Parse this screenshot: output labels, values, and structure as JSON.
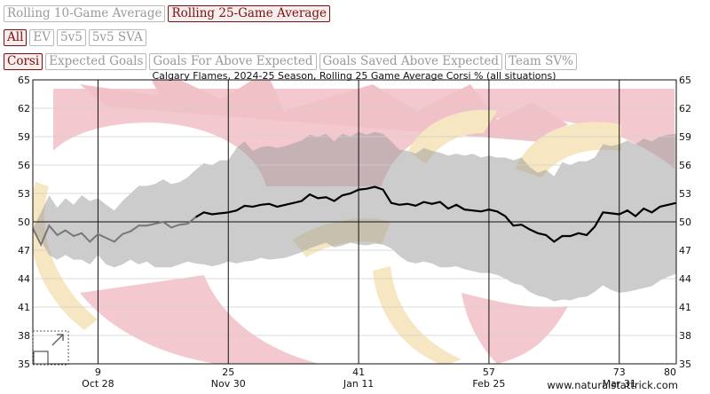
{
  "range_buttons": [
    {
      "label": "Rolling 10-Game Average",
      "active": false
    },
    {
      "label": "Rolling 25-Game Average",
      "active": true
    }
  ],
  "situation_buttons": [
    {
      "label": "All",
      "active": true
    },
    {
      "label": "EV",
      "active": false
    },
    {
      "label": "5v5",
      "active": false
    },
    {
      "label": "5v5 SVA",
      "active": false
    }
  ],
  "metric_buttons": [
    {
      "label": "Corsi",
      "active": true
    },
    {
      "label": "Expected Goals",
      "active": false
    },
    {
      "label": "Goals For Above Expected",
      "active": false
    },
    {
      "label": "Goals Saved Above Expected",
      "active": false
    },
    {
      "label": "Team SV%",
      "active": false
    }
  ],
  "watermark": "www.naturalstattrick.com",
  "chart_data": {
    "type": "line",
    "title": "Calgary Flames, 2024-25 Season, Rolling 25 Game Average Corsi % (all situations)",
    "xlim": [
      1,
      80
    ],
    "ylim": [
      35,
      65
    ],
    "yticks": [
      35,
      38,
      41,
      44,
      47,
      50,
      53,
      56,
      59,
      62,
      65
    ],
    "xticks": [
      {
        "game": 9,
        "date": "Oct 28"
      },
      {
        "game": 25,
        "date": "Nov 30"
      },
      {
        "game": 41,
        "date": "Jan 11"
      },
      {
        "game": 57,
        "date": "Feb 25"
      },
      {
        "game": 73,
        "date": "Mar 31"
      },
      {
        "game": 80,
        "date": ""
      }
    ],
    "reference_line": 50,
    "grid": true,
    "series": [
      {
        "color": "#000000",
        "points": [
          [
            1,
            49.3
          ],
          [
            2,
            47.6
          ],
          [
            3,
            49.6
          ],
          [
            4,
            48.6
          ],
          [
            5,
            49.1
          ],
          [
            6,
            48.5
          ],
          [
            7,
            48.8
          ],
          [
            8,
            47.9
          ],
          [
            9,
            48.7
          ],
          [
            10,
            48.3
          ],
          [
            11,
            47.9
          ],
          [
            12,
            48.7
          ],
          [
            13,
            49.0
          ],
          [
            14,
            49.6
          ],
          [
            15,
            49.6
          ],
          [
            16,
            49.8
          ],
          [
            17,
            50.0
          ],
          [
            18,
            49.4
          ],
          [
            19,
            49.7
          ],
          [
            20,
            49.8
          ],
          [
            21,
            50.5
          ],
          [
            22,
            51.0
          ],
          [
            23,
            50.8
          ],
          [
            24,
            50.9
          ],
          [
            25,
            51.0
          ],
          [
            26,
            51.2
          ],
          [
            27,
            51.7
          ],
          [
            28,
            51.6
          ],
          [
            29,
            51.8
          ],
          [
            30,
            51.9
          ],
          [
            31,
            51.6
          ],
          [
            32,
            51.8
          ],
          [
            33,
            52.0
          ],
          [
            34,
            52.2
          ],
          [
            35,
            52.9
          ],
          [
            36,
            52.5
          ],
          [
            37,
            52.6
          ],
          [
            38,
            52.2
          ],
          [
            39,
            52.8
          ],
          [
            40,
            53.0
          ],
          [
            41,
            53.4
          ],
          [
            42,
            53.5
          ],
          [
            43,
            53.7
          ],
          [
            44,
            53.4
          ],
          [
            45,
            52.0
          ],
          [
            46,
            51.8
          ],
          [
            47,
            51.9
          ],
          [
            48,
            51.7
          ],
          [
            49,
            52.1
          ],
          [
            50,
            51.9
          ],
          [
            51,
            52.1
          ],
          [
            52,
            51.4
          ],
          [
            53,
            51.8
          ],
          [
            54,
            51.3
          ],
          [
            55,
            51.2
          ],
          [
            56,
            51.1
          ],
          [
            57,
            51.3
          ],
          [
            58,
            51.1
          ],
          [
            59,
            50.6
          ],
          [
            60,
            49.6
          ],
          [
            61,
            49.7
          ],
          [
            62,
            49.2
          ],
          [
            63,
            48.8
          ],
          [
            64,
            48.6
          ],
          [
            65,
            47.9
          ],
          [
            66,
            48.5
          ],
          [
            67,
            48.5
          ],
          [
            68,
            48.8
          ],
          [
            69,
            48.6
          ],
          [
            70,
            49.5
          ],
          [
            71,
            51.0
          ],
          [
            72,
            50.9
          ],
          [
            73,
            50.8
          ],
          [
            74,
            51.2
          ],
          [
            75,
            50.6
          ],
          [
            76,
            51.4
          ],
          [
            77,
            51.0
          ],
          [
            78,
            51.6
          ],
          [
            79,
            51.8
          ],
          [
            80,
            52.0
          ]
        ]
      }
    ],
    "band": {
      "color": "#999999",
      "upper": [
        [
          1,
          49.3
        ],
        [
          2,
          51.0
        ],
        [
          3,
          52.8
        ],
        [
          4,
          51.5
        ],
        [
          5,
          52.5
        ],
        [
          6,
          51.8
        ],
        [
          7,
          52.8
        ],
        [
          8,
          52.2
        ],
        [
          9,
          52.5
        ],
        [
          10,
          51.8
        ],
        [
          11,
          51.2
        ],
        [
          12,
          52.2
        ],
        [
          13,
          53.0
        ],
        [
          14,
          53.8
        ],
        [
          15,
          53.8
        ],
        [
          16,
          54.0
        ],
        [
          17,
          54.5
        ],
        [
          18,
          54.0
        ],
        [
          19,
          54.2
        ],
        [
          20,
          54.7
        ],
        [
          21,
          55.5
        ],
        [
          22,
          56.2
        ],
        [
          23,
          56.0
        ],
        [
          24,
          56.5
        ],
        [
          25,
          56.5
        ],
        [
          26,
          57.8
        ],
        [
          27,
          58.5
        ],
        [
          28,
          57.5
        ],
        [
          29,
          57.9
        ],
        [
          30,
          58.0
        ],
        [
          31,
          57.8
        ],
        [
          32,
          58.0
        ],
        [
          33,
          58.3
        ],
        [
          34,
          58.6
        ],
        [
          35,
          59.2
        ],
        [
          36,
          59.0
        ],
        [
          37,
          59.3
        ],
        [
          38,
          58.5
        ],
        [
          39,
          59.3
        ],
        [
          40,
          59.0
        ],
        [
          41,
          59.5
        ],
        [
          42,
          59.2
        ],
        [
          43,
          59.5
        ],
        [
          44,
          59.3
        ],
        [
          45,
          58.5
        ],
        [
          46,
          57.6
        ],
        [
          47,
          57.5
        ],
        [
          48,
          57.2
        ],
        [
          49,
          57.8
        ],
        [
          50,
          57.5
        ],
        [
          51,
          57.3
        ],
        [
          52,
          57.0
        ],
        [
          53,
          57.2
        ],
        [
          54,
          57.0
        ],
        [
          55,
          57.2
        ],
        [
          56,
          56.8
        ],
        [
          57,
          57.0
        ],
        [
          58,
          56.8
        ],
        [
          59,
          56.8
        ],
        [
          60,
          56.5
        ],
        [
          61,
          56.8
        ],
        [
          62,
          55.8
        ],
        [
          63,
          55.2
        ],
        [
          64,
          55.5
        ],
        [
          65,
          54.8
        ],
        [
          66,
          56.3
        ],
        [
          67,
          56.0
        ],
        [
          68,
          56.4
        ],
        [
          69,
          56.4
        ],
        [
          70,
          56.8
        ],
        [
          71,
          58.2
        ],
        [
          72,
          58.0
        ],
        [
          73,
          58.2
        ],
        [
          74,
          58.6
        ],
        [
          75,
          58.2
        ],
        [
          76,
          58.8
        ],
        [
          77,
          58.5
        ],
        [
          78,
          59.0
        ],
        [
          79,
          59.2
        ],
        [
          80,
          59.3
        ]
      ],
      "lower": [
        [
          1,
          49.3
        ],
        [
          2,
          48.0
        ],
        [
          3,
          46.5
        ],
        [
          4,
          46.0
        ],
        [
          5,
          46.5
        ],
        [
          6,
          46.0
        ],
        [
          7,
          46.0
        ],
        [
          8,
          45.5
        ],
        [
          9,
          46.5
        ],
        [
          10,
          45.5
        ],
        [
          11,
          45.2
        ],
        [
          12,
          45.5
        ],
        [
          13,
          46.0
        ],
        [
          14,
          45.5
        ],
        [
          15,
          45.8
        ],
        [
          16,
          45.2
        ],
        [
          17,
          45.2
        ],
        [
          18,
          45.2
        ],
        [
          19,
          45.5
        ],
        [
          20,
          45.8
        ],
        [
          21,
          45.6
        ],
        [
          22,
          45.5
        ],
        [
          23,
          45.3
        ],
        [
          24,
          45.5
        ],
        [
          25,
          45.8
        ],
        [
          26,
          45.6
        ],
        [
          27,
          45.8
        ],
        [
          28,
          45.9
        ],
        [
          29,
          46.2
        ],
        [
          30,
          46.0
        ],
        [
          31,
          46.1
        ],
        [
          32,
          46.2
        ],
        [
          33,
          46.5
        ],
        [
          34,
          46.8
        ],
        [
          35,
          47.2
        ],
        [
          36,
          47.5
        ],
        [
          37,
          47.8
        ],
        [
          38,
          47.3
        ],
        [
          39,
          47.5
        ],
        [
          40,
          47.8
        ],
        [
          41,
          47.6
        ],
        [
          42,
          47.5
        ],
        [
          43,
          47.7
        ],
        [
          44,
          47.6
        ],
        [
          45,
          47.2
        ],
        [
          46,
          46.4
        ],
        [
          47,
          45.8
        ],
        [
          48,
          45.6
        ],
        [
          49,
          45.8
        ],
        [
          50,
          45.6
        ],
        [
          51,
          45.2
        ],
        [
          52,
          45.2
        ],
        [
          53,
          45.3
        ],
        [
          54,
          45.0
        ],
        [
          55,
          44.8
        ],
        [
          56,
          44.6
        ],
        [
          57,
          44.6
        ],
        [
          58,
          44.4
        ],
        [
          59,
          44.0
        ],
        [
          60,
          43.5
        ],
        [
          61,
          43.3
        ],
        [
          62,
          42.6
        ],
        [
          63,
          42.2
        ],
        [
          64,
          42.0
        ],
        [
          65,
          41.6
        ],
        [
          66,
          41.8
        ],
        [
          67,
          41.7
        ],
        [
          68,
          42.0
        ],
        [
          69,
          42.1
        ],
        [
          70,
          42.6
        ],
        [
          71,
          43.3
        ],
        [
          72,
          42.8
        ],
        [
          73,
          42.5
        ],
        [
          74,
          42.6
        ],
        [
          75,
          42.8
        ],
        [
          76,
          43.0
        ],
        [
          77,
          43.2
        ],
        [
          78,
          43.8
        ],
        [
          79,
          44.2
        ],
        [
          80,
          44.5
        ]
      ]
    }
  }
}
